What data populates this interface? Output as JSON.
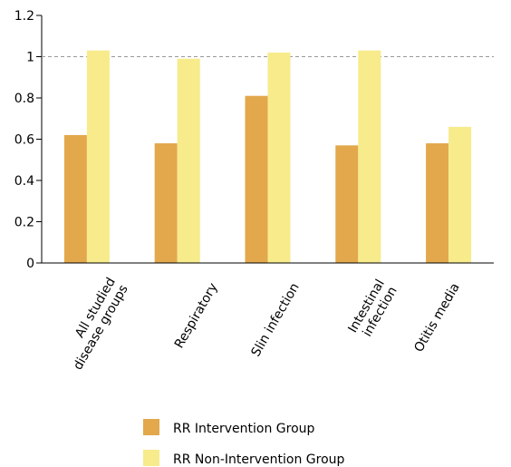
{
  "chart_data": {
    "type": "bar",
    "categories": [
      [
        "All studied",
        "disease groups"
      ],
      [
        "Respiratory"
      ],
      [
        "Slin infection"
      ],
      [
        "Intestinal",
        "infection"
      ],
      [
        "Otitis media"
      ]
    ],
    "series": [
      {
        "name": "RR Intervention Group",
        "color": "#e2a84b",
        "values": [
          0.62,
          0.58,
          0.81,
          0.57,
          0.58
        ]
      },
      {
        "name": "RR Non-Intervention Group",
        "color": "#f7eb8b",
        "values": [
          1.03,
          0.99,
          1.02,
          1.03,
          0.66
        ]
      }
    ],
    "yticks": [
      "0",
      "0.2",
      "0.4",
      "0.6",
      "0.8",
      "1",
      "1.2"
    ],
    "ylim": [
      0,
      1.2
    ],
    "reference_line": 1,
    "grid": false,
    "legend_position": "bottom"
  }
}
